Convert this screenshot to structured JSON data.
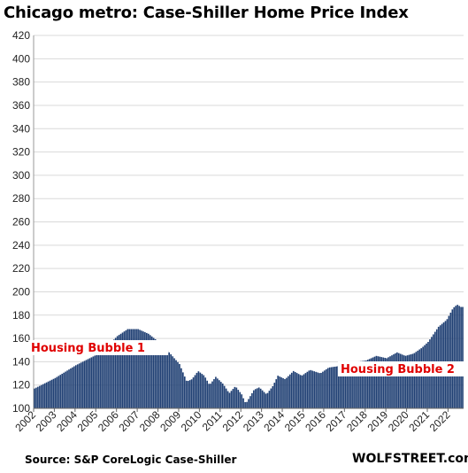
{
  "title": "Chicago metro: Case-Shiller Home Price Index",
  "source": "Source: S&P CoreLogic Case-Shiller",
  "brand": "WOLFSTREET.com",
  "chart_data": {
    "type": "bar",
    "title": "Chicago metro: Case-Shiller Home Price Index",
    "xlabel": "",
    "ylabel": "",
    "ylim": [
      100,
      420
    ],
    "yticks": [
      100,
      120,
      140,
      160,
      180,
      200,
      220,
      240,
      260,
      280,
      300,
      320,
      340,
      360,
      380,
      400,
      420
    ],
    "xtick_labels": [
      "2002",
      "2003",
      "2004",
      "2005",
      "2006",
      "2007",
      "2008",
      "2009",
      "2010",
      "2011",
      "2012",
      "2013",
      "2014",
      "2015",
      "2016",
      "2017",
      "2018",
      "2019",
      "2020",
      "2021",
      "2022"
    ],
    "grid": "horizontal",
    "bar_color": "#1f3f73",
    "annotations": [
      {
        "text": "Housing Bubble 1",
        "color": "#e00000"
      },
      {
        "text": "Housing Bubble 2",
        "color": "#e00000"
      }
    ],
    "anchors": [
      [
        2002.0,
        117
      ],
      [
        2003.0,
        126
      ],
      [
        2004.0,
        137
      ],
      [
        2005.0,
        146
      ],
      [
        2005.5,
        153
      ],
      [
        2006.0,
        162
      ],
      [
        2006.5,
        168
      ],
      [
        2007.0,
        168
      ],
      [
        2007.5,
        164
      ],
      [
        2008.0,
        157
      ],
      [
        2008.5,
        148
      ],
      [
        2009.0,
        138
      ],
      [
        2009.35,
        123
      ],
      [
        2009.6,
        125
      ],
      [
        2009.9,
        132
      ],
      [
        2010.2,
        128
      ],
      [
        2010.45,
        120
      ],
      [
        2010.75,
        127
      ],
      [
        2011.1,
        121
      ],
      [
        2011.4,
        113
      ],
      [
        2011.7,
        119
      ],
      [
        2012.0,
        112
      ],
      [
        2012.2,
        104
      ],
      [
        2012.6,
        116
      ],
      [
        2012.85,
        118
      ],
      [
        2013.2,
        112
      ],
      [
        2013.5,
        119
      ],
      [
        2013.75,
        128
      ],
      [
        2014.1,
        125
      ],
      [
        2014.5,
        132
      ],
      [
        2014.9,
        128
      ],
      [
        2015.3,
        133
      ],
      [
        2015.8,
        130
      ],
      [
        2016.2,
        135
      ],
      [
        2016.6,
        136
      ],
      [
        2017.0,
        138
      ],
      [
        2017.5,
        140
      ],
      [
        2018.0,
        141
      ],
      [
        2018.5,
        145
      ],
      [
        2019.0,
        143
      ],
      [
        2019.5,
        148
      ],
      [
        2019.9,
        145
      ],
      [
        2020.3,
        147
      ],
      [
        2020.7,
        152
      ],
      [
        2021.0,
        157
      ],
      [
        2021.5,
        170
      ],
      [
        2021.9,
        176
      ],
      [
        2022.2,
        186
      ],
      [
        2022.4,
        189
      ],
      [
        2022.58,
        187
      ]
    ]
  }
}
